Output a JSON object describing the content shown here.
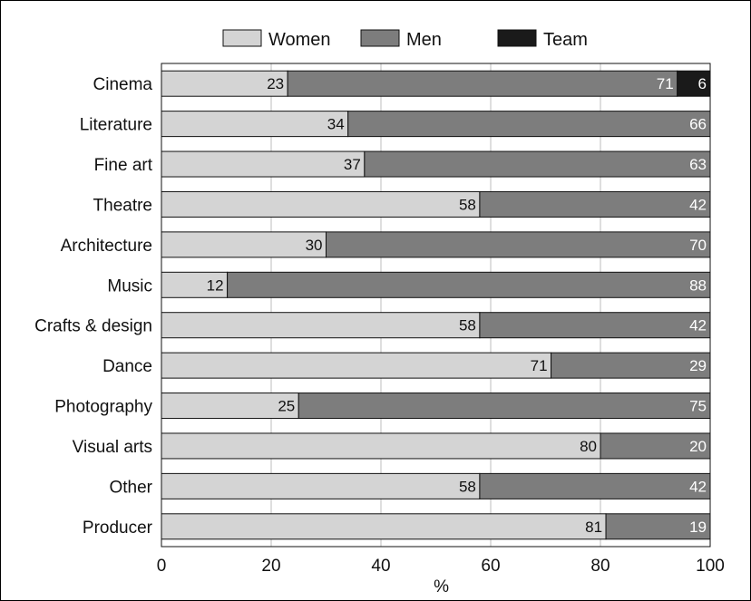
{
  "chart_data": {
    "type": "bar",
    "orientation": "horizontal",
    "stacked": true,
    "categories": [
      "Cinema",
      "Literature",
      "Fine art",
      "Theatre",
      "Architecture",
      "Music",
      "Crafts & design",
      "Dance",
      "Photography",
      "Visual arts",
      "Other",
      "Producer"
    ],
    "series": [
      {
        "name": "Women",
        "color": "#d4d4d4",
        "label_color": "#111111",
        "values": [
          23,
          34,
          37,
          58,
          30,
          12,
          58,
          71,
          25,
          80,
          58,
          81
        ]
      },
      {
        "name": "Men",
        "color": "#7d7d7d",
        "label_color": "#ffffff",
        "values": [
          71,
          66,
          63,
          42,
          70,
          88,
          42,
          29,
          75,
          20,
          42,
          19
        ]
      },
      {
        "name": "Team",
        "color": "#1a1a1a",
        "label_color": "#ffffff",
        "values": [
          6,
          0,
          0,
          0,
          0,
          0,
          0,
          0,
          0,
          0,
          0,
          0
        ]
      }
    ],
    "xlim": [
      0,
      100
    ],
    "xticks": [
      "0",
      "20",
      "40",
      "60",
      "80",
      "100"
    ],
    "xlabel": "%",
    "ylabel": "",
    "title": "",
    "grid": "vertical",
    "legend": "top"
  }
}
